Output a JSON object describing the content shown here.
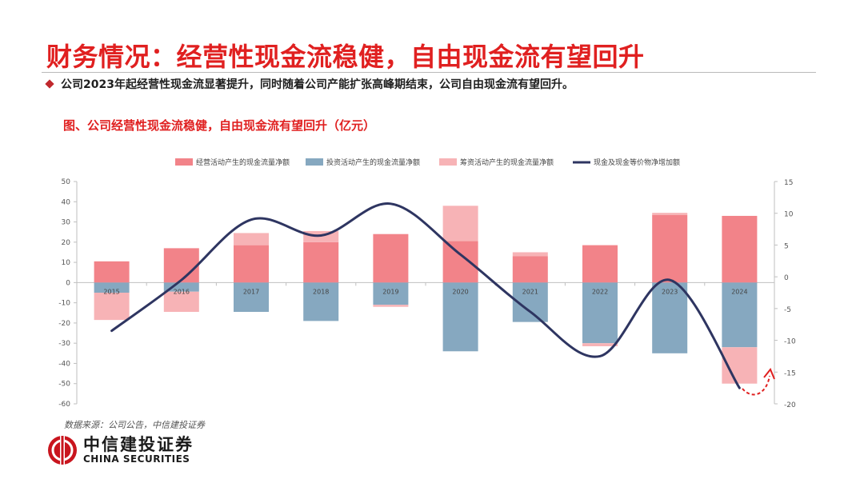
{
  "header": {
    "title": "财务情况：经营性现金流稳健，自由现金流有望回升",
    "bullet": "公司2023年起经营性现金流显著提升，同时随着公司产能扩张高峰期结束，公司自由现金流有望回升。"
  },
  "figure": {
    "title": "图、公司经营性现金流稳健，自由现金流有望回升（亿元）",
    "source": "数据来源：公司公告，中信建投证券"
  },
  "logo": {
    "cn": "中信建投证券",
    "en": "CHINA SECURITIES"
  },
  "colors": {
    "operating": "#f28389",
    "investing": "#86a8c0",
    "financing": "#f7b3b6",
    "line": "#2e3561",
    "accent": "#e02020"
  },
  "chart_data": {
    "type": "bar",
    "stacked": true,
    "categories": [
      "2015",
      "2016",
      "2017",
      "2018",
      "2019",
      "2020",
      "2021",
      "2022",
      "2023",
      "2024"
    ],
    "series": [
      {
        "name": "经营活动产生的现金流量净额",
        "kind": "bar",
        "axis": "left",
        "values": [
          10.5,
          17,
          18.5,
          20,
          24,
          20.5,
          13,
          18.5,
          33.5,
          33
        ]
      },
      {
        "name": "投资活动产生的现金流量净额",
        "kind": "bar",
        "axis": "left",
        "values": [
          -5,
          -4.5,
          -14.5,
          -19,
          -11,
          -34,
          -19.5,
          -30,
          -35,
          -32
        ]
      },
      {
        "name": "筹资活动产生的现金流量净额",
        "kind": "bar",
        "axis": "left",
        "values": [
          -13.5,
          -10,
          6,
          5.5,
          -1,
          17.5,
          2,
          -1.5,
          1,
          -18
        ]
      },
      {
        "name": "现金及现金等价物净增加额",
        "kind": "line",
        "axis": "right",
        "values": [
          -8.5,
          -0.5,
          9,
          6.5,
          11.5,
          3.5,
          -5.5,
          -12.5,
          -0.5,
          -17.5
        ]
      }
    ],
    "y_left": {
      "min": -60,
      "max": 50,
      "step": 10
    },
    "y_right": {
      "min": -20,
      "max": 15,
      "step": 5
    },
    "legend": "top",
    "grid": false
  }
}
